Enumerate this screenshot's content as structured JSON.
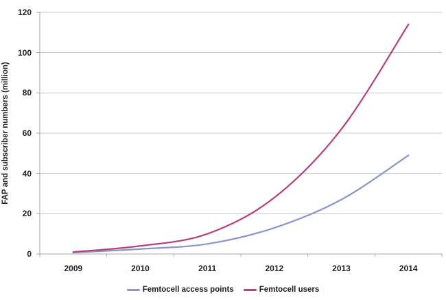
{
  "chart_data": {
    "type": "line",
    "title": "",
    "xlabel": "",
    "ylabel": "FAP and subscriber numbers (million)",
    "categories": [
      "2009",
      "2010",
      "2011",
      "2012",
      "2013",
      "2014"
    ],
    "series": [
      {
        "name": "Femtocell access points",
        "color": "#8B95C8",
        "values": [
          0.7,
          2.5,
          5,
          13,
          27,
          49
        ]
      },
      {
        "name": "Femtocell users",
        "color": "#B1457B",
        "values": [
          1,
          4,
          10,
          28,
          62,
          114
        ]
      }
    ],
    "ylim": [
      0,
      120
    ],
    "yticks": [
      0,
      20,
      40,
      60,
      80,
      100,
      120
    ],
    "grid": true,
    "smoothed": true,
    "legend_position": "bottom"
  },
  "colors": {
    "background": "#FFFFFF",
    "gridline": "#C6C6C6",
    "axis": "#A6A6A6",
    "text": "#1F1F1F"
  }
}
